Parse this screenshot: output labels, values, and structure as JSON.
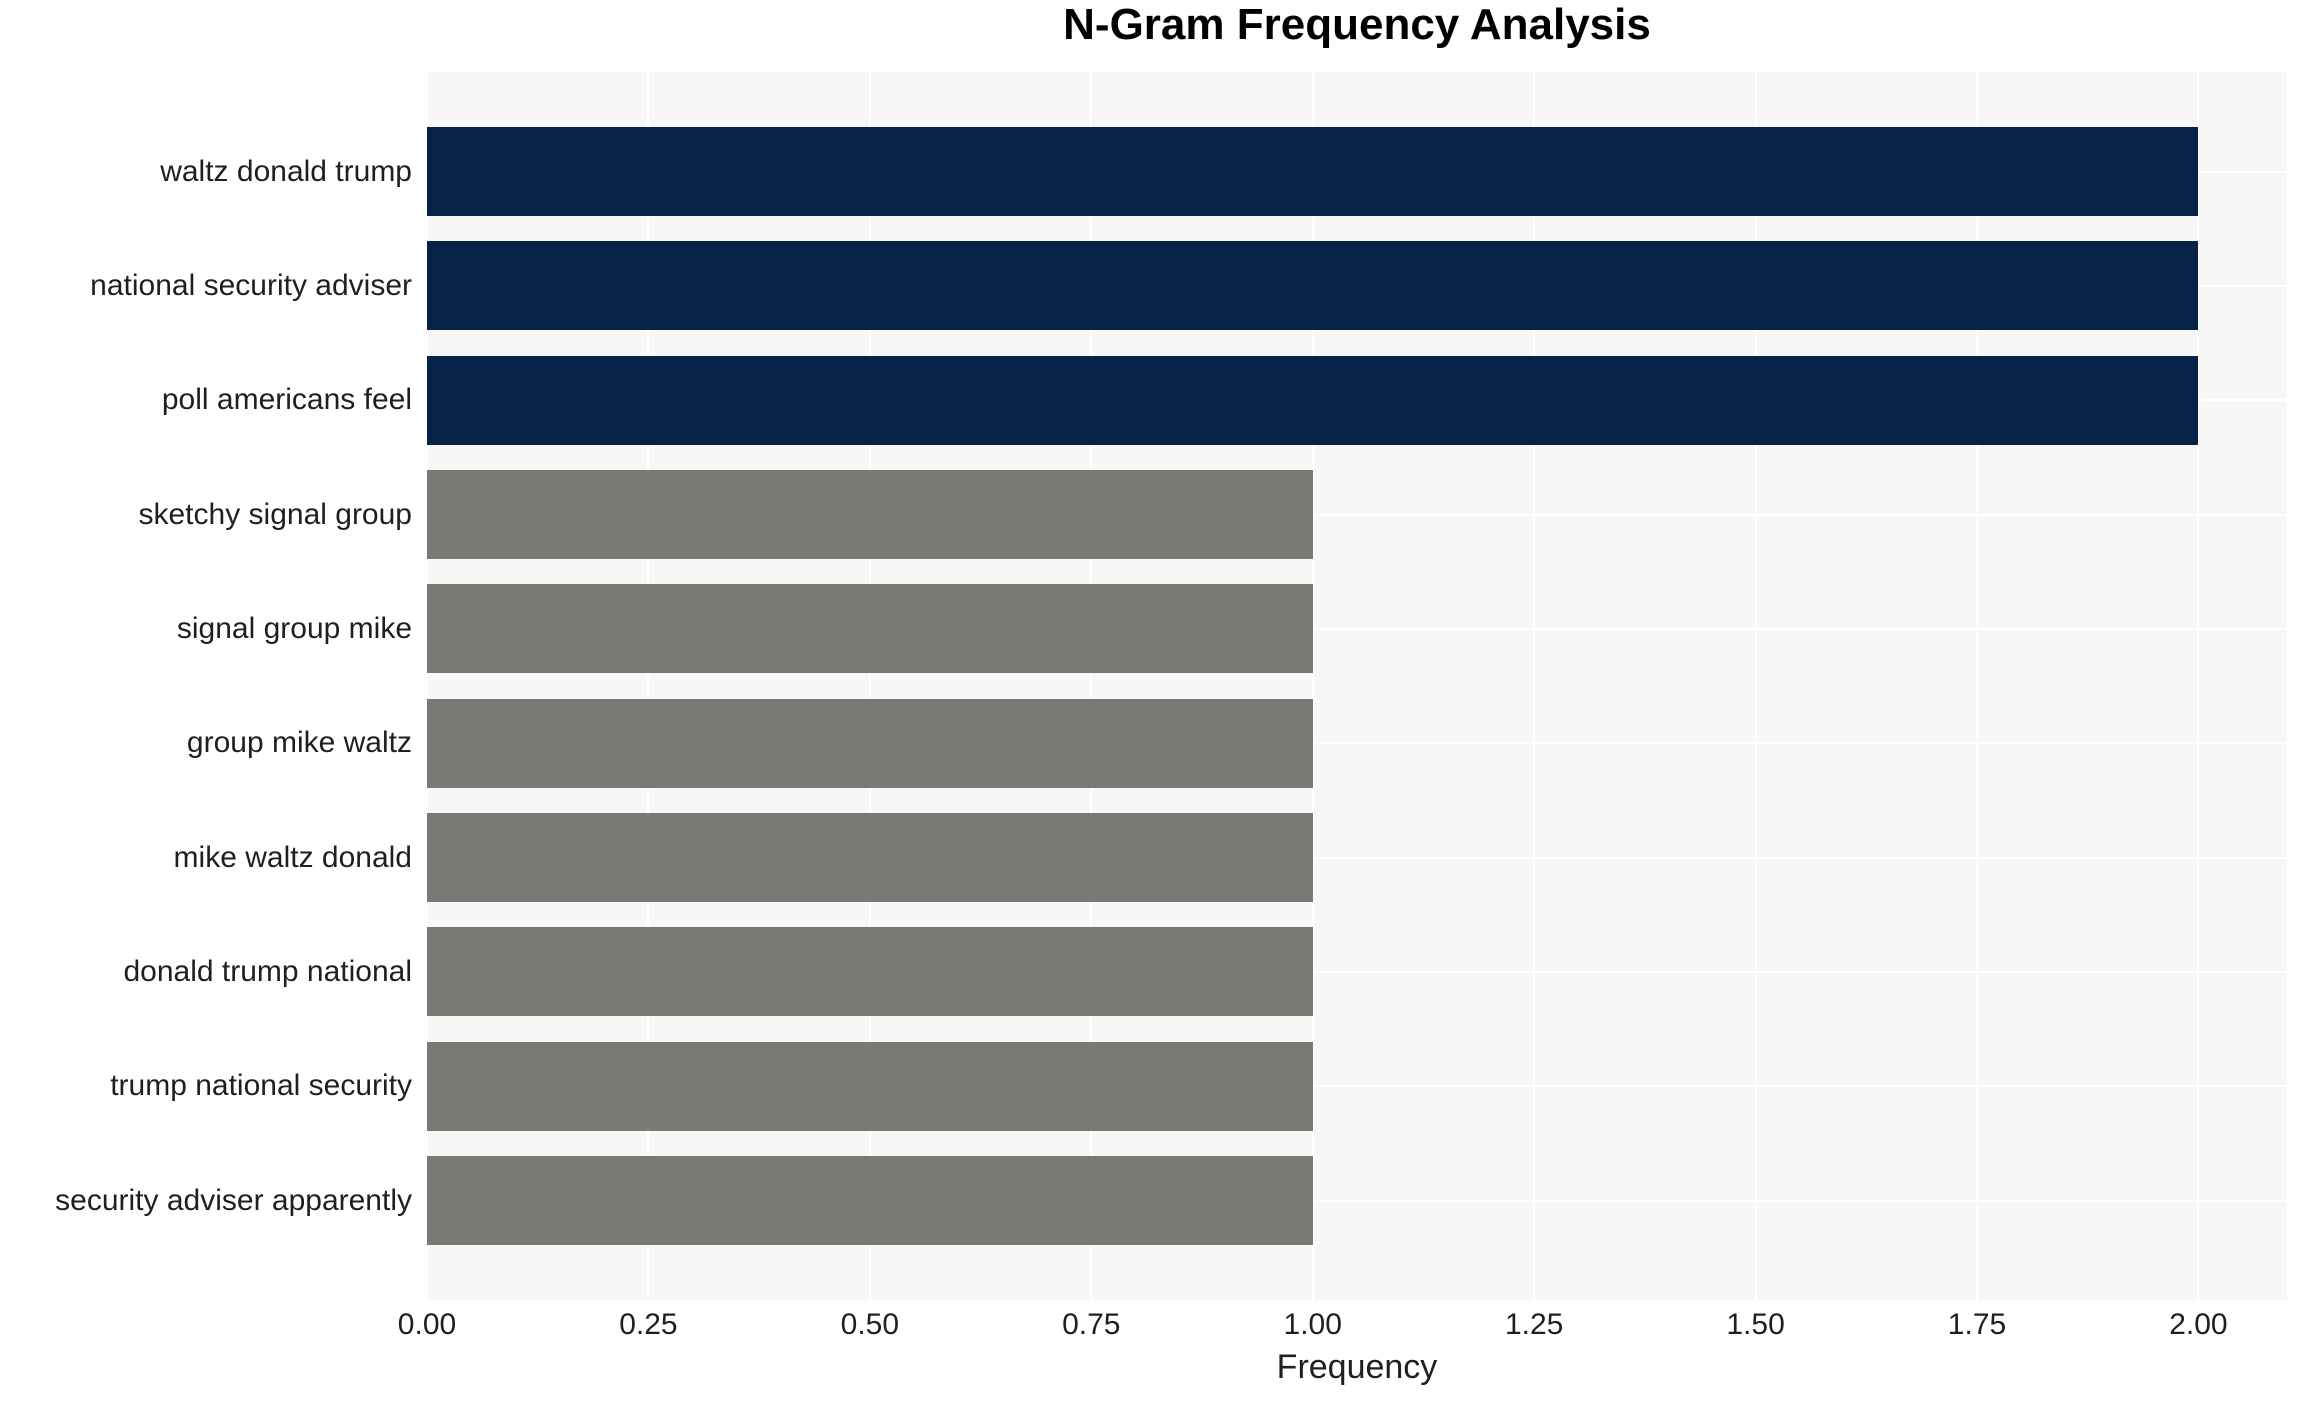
{
  "chart_data": {
    "type": "bar",
    "orientation": "horizontal",
    "title": "N-Gram Frequency Analysis",
    "xlabel": "Frequency",
    "ylabel": "",
    "categories": [
      "waltz donald trump",
      "national security adviser",
      "poll americans feel",
      "sketchy signal group",
      "signal group mike",
      "group mike waltz",
      "mike waltz donald",
      "donald trump national",
      "trump national security",
      "security adviser apparently"
    ],
    "values": [
      2,
      2,
      2,
      1,
      1,
      1,
      1,
      1,
      1,
      1
    ],
    "bar_colors": [
      "#072247",
      "#072247",
      "#072247",
      "#7a7974",
      "#7a7974",
      "#7a7974",
      "#7a7974",
      "#7a7974",
      "#7a7974",
      "#7a7974"
    ],
    "xtick_labels": [
      "0.00",
      "0.25",
      "0.50",
      "0.75",
      "1.00",
      "1.25",
      "1.50",
      "1.75",
      "2.00"
    ],
    "xtick_values": [
      0,
      0.25,
      0.5,
      0.75,
      1.0,
      1.25,
      1.5,
      1.75,
      2.0
    ],
    "xlim": [
      0,
      2.1
    ],
    "grid": true,
    "legend": "none",
    "colors": {
      "highlight": "#072247",
      "muted": "#7a7974",
      "plot_background": "#f7f7f7",
      "gridline": "#ffffff",
      "text": "#1f1f1f",
      "title": "#000000",
      "figure_background": "#ffffff"
    }
  }
}
